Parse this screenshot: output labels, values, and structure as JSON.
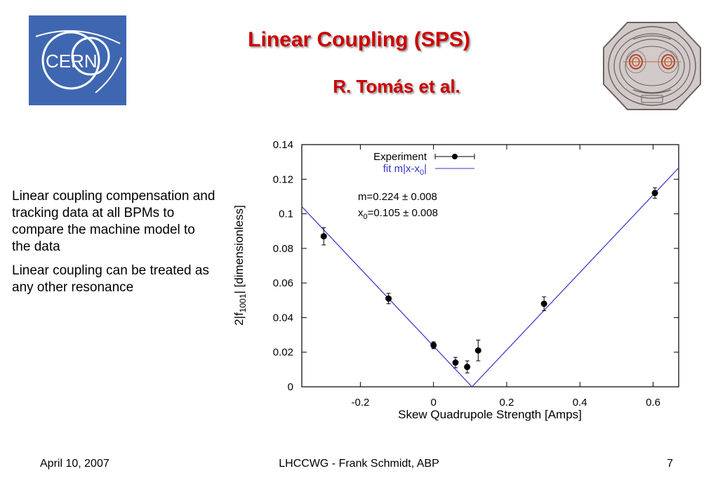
{
  "header": {
    "title": "Linear Coupling (SPS)",
    "authors": "R. Tomás et al.",
    "logo_text": "CERN"
  },
  "body_text": {
    "paragraph1": "Linear coupling compensation and tracking data at all BPMs to compare the machine model to the data",
    "paragraph2": "Linear coupling can be treated as any other resonance"
  },
  "footer": {
    "date": "April 10, 2007",
    "center": "LHCCWG - Frank Schmidt, ABP",
    "page": "7"
  },
  "colors": {
    "title": "#cc0000",
    "logo_bg": "#3f67b1",
    "fit_line": "#3333cc"
  },
  "chart_data": {
    "type": "scatter",
    "xlabel": "Skew Quadrupole Strength [Amps]",
    "ylabel_parts": [
      "2|f",
      "1001",
      "| [dimensionless]"
    ],
    "xlim": [
      -0.36,
      0.67
    ],
    "ylim": [
      0,
      0.14
    ],
    "x_ticks": [
      -0.2,
      0,
      0.2,
      0.4,
      0.6
    ],
    "x_tick_labels": [
      "-0.2",
      "0",
      "0.2",
      "0.4",
      "0.6"
    ],
    "y_ticks": [
      0,
      0.02,
      0.04,
      0.06,
      0.08,
      0.1,
      0.12,
      0.14
    ],
    "y_tick_labels": [
      "0",
      "0.02",
      "0.04",
      "0.06",
      "0.08",
      "0.1",
      "0.12",
      "0.14"
    ],
    "legend": {
      "experiment": "Experiment",
      "fit_parts": [
        "fit m|x-x",
        "0",
        "|"
      ]
    },
    "annotations": {
      "m_line": "m=0.224  ± 0.008",
      "x0_parts": [
        "x",
        "0",
        "=0.105  ± 0.008"
      ]
    },
    "series": [
      {
        "name": "Experiment",
        "points": [
          {
            "x": -0.3,
            "y": 0.087,
            "err": 0.005
          },
          {
            "x": -0.123,
            "y": 0.051,
            "err": 0.003
          },
          {
            "x": 0.0,
            "y": 0.024,
            "err": 0.002
          },
          {
            "x": 0.06,
            "y": 0.014,
            "err": 0.003
          },
          {
            "x": 0.092,
            "y": 0.0115,
            "err": 0.0035
          },
          {
            "x": 0.122,
            "y": 0.021,
            "err": 0.006
          },
          {
            "x": 0.302,
            "y": 0.048,
            "err": 0.004
          },
          {
            "x": 0.605,
            "y": 0.112,
            "err": 0.003
          }
        ]
      },
      {
        "name": "fit m|x-x0|",
        "model": {
          "m": 0.224,
          "x0": 0.105
        }
      }
    ]
  }
}
